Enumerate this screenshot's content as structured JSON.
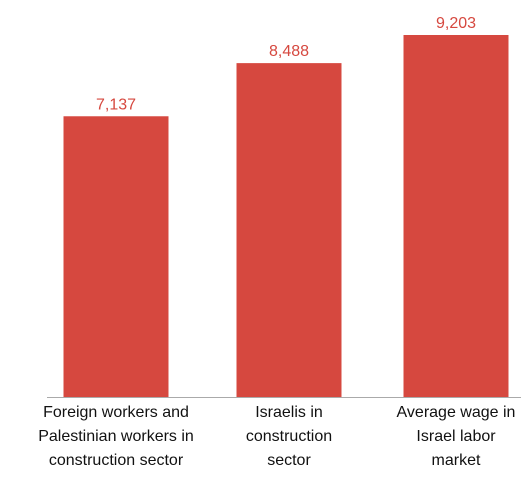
{
  "chart_data": {
    "type": "bar",
    "categories": [
      "Foreign workers and Palestinian workers in construction sector",
      "Israelis in construction sector",
      "Average wage in Israel labor market"
    ],
    "values": [
      7137,
      8488,
      9203
    ],
    "value_labels": [
      "7,137",
      "8,488",
      "9,203"
    ],
    "color": "#d6483f"
  }
}
